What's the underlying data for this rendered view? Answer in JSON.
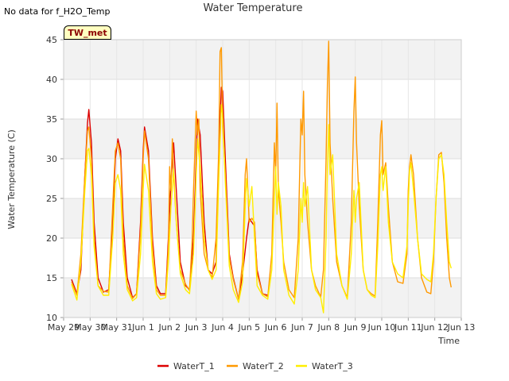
{
  "no_data_note": "No data for f_H2O_Temp",
  "badge_label": "TW_met",
  "chart_data": {
    "type": "line",
    "title": "Water Temperature",
    "xlabel": "Time",
    "ylabel": "Water Temperature (C)",
    "ylim": [
      10,
      45
    ],
    "yticks": [
      10,
      15,
      20,
      25,
      30,
      35,
      40,
      45
    ],
    "xlim": [
      0,
      15
    ],
    "xticks": [
      {
        "v": 0,
        "label": "May 29"
      },
      {
        "v": 1,
        "label": "May 30"
      },
      {
        "v": 2,
        "label": "May 31"
      },
      {
        "v": 3,
        "label": "Jun 1"
      },
      {
        "v": 4,
        "label": "Jun 2"
      },
      {
        "v": 5,
        "label": "Jun 3"
      },
      {
        "v": 6,
        "label": "Jun 4"
      },
      {
        "v": 7,
        "label": "Jun 5"
      },
      {
        "v": 8,
        "label": "Jun 6"
      },
      {
        "v": 9,
        "label": "Jun 7"
      },
      {
        "v": 10,
        "label": "Jun 8"
      },
      {
        "v": 11,
        "label": "Jun 9"
      },
      {
        "v": 12,
        "label": "Jun 10"
      },
      {
        "v": 13,
        "label": "Jun 11"
      },
      {
        "v": 14,
        "label": "Jun 12"
      },
      {
        "v": 15,
        "label": "Jun 13"
      }
    ],
    "grid": true,
    "legend_position": "bottom-center",
    "series": [
      {
        "name": "WaterT_1",
        "color": "#dd0000",
        "points": [
          [
            0.3,
            14.8
          ],
          [
            0.5,
            13.0
          ],
          [
            0.65,
            16
          ],
          [
            0.8,
            28
          ],
          [
            0.9,
            34.5
          ],
          [
            0.95,
            36.2
          ],
          [
            1.05,
            32
          ],
          [
            1.15,
            22
          ],
          [
            1.3,
            15
          ],
          [
            1.5,
            13.2
          ],
          [
            1.7,
            13.5
          ],
          [
            1.85,
            22
          ],
          [
            1.95,
            30
          ],
          [
            2.05,
            32.5
          ],
          [
            2.15,
            31
          ],
          [
            2.25,
            22
          ],
          [
            2.4,
            15
          ],
          [
            2.6,
            12.5
          ],
          [
            2.75,
            13
          ],
          [
            2.9,
            22
          ],
          [
            3.0,
            31
          ],
          [
            3.05,
            34
          ],
          [
            3.2,
            31
          ],
          [
            3.35,
            20
          ],
          [
            3.5,
            14
          ],
          [
            3.65,
            13
          ],
          [
            3.85,
            13
          ],
          [
            3.95,
            20
          ],
          [
            4.05,
            27
          ],
          [
            4.15,
            32
          ],
          [
            4.25,
            26
          ],
          [
            4.4,
            17
          ],
          [
            4.6,
            14
          ],
          [
            4.75,
            13.5
          ],
          [
            4.9,
            20
          ],
          [
            5.0,
            30
          ],
          [
            5.05,
            35
          ],
          [
            5.15,
            33
          ],
          [
            5.3,
            22
          ],
          [
            5.45,
            16
          ],
          [
            5.6,
            15.5
          ],
          [
            5.75,
            17
          ],
          [
            5.85,
            30
          ],
          [
            5.95,
            39
          ],
          [
            6.0,
            38.5
          ],
          [
            6.1,
            30
          ],
          [
            6.25,
            18
          ],
          [
            6.4,
            15
          ],
          [
            6.6,
            12.3
          ],
          [
            6.75,
            15.5
          ],
          [
            6.9,
            20
          ],
          [
            7.0,
            22.5
          ],
          [
            7.1,
            22
          ],
          [
            7.2,
            21.5
          ],
          [
            7.3,
            16
          ],
          [
            7.5,
            13
          ],
          [
            7.7,
            12.8
          ]
        ]
      },
      {
        "name": "WaterT_2",
        "color": "#ff9900",
        "points": [
          [
            0.3,
            14.5
          ],
          [
            0.5,
            12.8
          ],
          [
            0.65,
            18
          ],
          [
            0.8,
            28
          ],
          [
            0.9,
            33.5
          ],
          [
            0.95,
            34
          ],
          [
            1.05,
            30
          ],
          [
            1.15,
            20
          ],
          [
            1.3,
            14
          ],
          [
            1.5,
            13.3
          ],
          [
            1.7,
            13.2
          ],
          [
            1.85,
            24
          ],
          [
            1.95,
            31
          ],
          [
            2.05,
            32
          ],
          [
            2.15,
            30
          ],
          [
            2.25,
            20
          ],
          [
            2.4,
            14
          ],
          [
            2.6,
            12.4
          ],
          [
            2.75,
            13
          ],
          [
            2.9,
            21
          ],
          [
            3.0,
            30
          ],
          [
            3.05,
            33.5
          ],
          [
            3.2,
            30
          ],
          [
            3.35,
            19
          ],
          [
            3.5,
            13.5
          ],
          [
            3.65,
            12.8
          ],
          [
            3.85,
            12.8
          ],
          [
            3.95,
            19
          ],
          [
            4.0,
            29
          ],
          [
            4.05,
            26
          ],
          [
            4.1,
            32.5
          ],
          [
            4.15,
            28
          ],
          [
            4.25,
            22
          ],
          [
            4.4,
            16
          ],
          [
            4.6,
            14.2
          ],
          [
            4.75,
            13.4
          ],
          [
            4.85,
            20
          ],
          [
            4.9,
            26
          ],
          [
            4.95,
            31
          ],
          [
            5.0,
            36
          ],
          [
            5.05,
            33
          ],
          [
            5.1,
            35
          ],
          [
            5.15,
            26
          ],
          [
            5.3,
            18
          ],
          [
            5.45,
            16
          ],
          [
            5.6,
            15
          ],
          [
            5.75,
            20
          ],
          [
            5.85,
            31
          ],
          [
            5.9,
            43.5
          ],
          [
            5.95,
            44
          ],
          [
            6.0,
            34
          ],
          [
            6.1,
            28
          ],
          [
            6.25,
            17.5
          ],
          [
            6.4,
            14.8
          ],
          [
            6.6,
            12.3
          ],
          [
            6.75,
            17
          ],
          [
            6.85,
            28
          ],
          [
            6.9,
            30
          ],
          [
            6.95,
            26
          ],
          [
            7.0,
            22
          ],
          [
            7.1,
            22.5
          ],
          [
            7.2,
            22
          ],
          [
            7.3,
            15.5
          ],
          [
            7.5,
            13
          ],
          [
            7.7,
            12.6
          ],
          [
            7.85,
            18
          ],
          [
            7.95,
            32
          ],
          [
            8.0,
            28
          ],
          [
            8.05,
            37
          ],
          [
            8.1,
            26
          ],
          [
            8.2,
            22
          ],
          [
            8.3,
            17
          ],
          [
            8.5,
            13.5
          ],
          [
            8.7,
            12.5
          ],
          [
            8.85,
            20
          ],
          [
            8.95,
            35
          ],
          [
            9.0,
            33
          ],
          [
            9.05,
            38.5
          ],
          [
            9.1,
            28
          ],
          [
            9.2,
            22
          ],
          [
            9.35,
            16
          ],
          [
            9.5,
            14
          ],
          [
            9.7,
            12.6
          ],
          [
            9.8,
            16
          ],
          [
            9.9,
            30
          ],
          [
            9.95,
            39.5
          ],
          [
            10.0,
            44.8
          ],
          [
            10.05,
            32
          ],
          [
            10.15,
            25
          ],
          [
            10.3,
            17
          ],
          [
            10.5,
            14
          ],
          [
            10.7,
            12.5
          ],
          [
            10.85,
            22
          ],
          [
            10.95,
            36
          ],
          [
            11.0,
            40.3
          ],
          [
            11.05,
            32
          ],
          [
            11.15,
            24
          ],
          [
            11.3,
            16
          ],
          [
            11.45,
            13.5
          ],
          [
            11.6,
            13
          ],
          [
            11.75,
            12.7
          ],
          [
            11.85,
            22
          ],
          [
            11.95,
            33
          ],
          [
            12.0,
            34.8
          ],
          [
            12.05,
            28
          ],
          [
            12.15,
            29.5
          ],
          [
            12.25,
            24
          ],
          [
            12.4,
            17
          ],
          [
            12.6,
            14.5
          ],
          [
            12.8,
            14.3
          ],
          [
            12.95,
            18
          ],
          [
            13.0,
            26
          ],
          [
            13.05,
            29
          ],
          [
            13.1,
            30.5
          ],
          [
            13.2,
            28
          ],
          [
            13.35,
            20
          ],
          [
            13.5,
            15
          ],
          [
            13.7,
            13.2
          ],
          [
            13.85,
            13
          ],
          [
            13.95,
            17
          ],
          [
            14.05,
            25
          ],
          [
            14.15,
            30.5
          ],
          [
            14.25,
            30.8
          ],
          [
            14.35,
            27
          ],
          [
            14.45,
            20
          ],
          [
            14.55,
            15
          ],
          [
            14.62,
            13.8
          ]
        ]
      },
      {
        "name": "WaterT_3",
        "color": "#ffee00",
        "points": [
          [
            0.3,
            14.2
          ],
          [
            0.5,
            12.2
          ],
          [
            0.65,
            17
          ],
          [
            0.8,
            26
          ],
          [
            0.9,
            31
          ],
          [
            0.95,
            31.3
          ],
          [
            1.05,
            28
          ],
          [
            1.15,
            19
          ],
          [
            1.3,
            14
          ],
          [
            1.5,
            12.8
          ],
          [
            1.7,
            12.8
          ],
          [
            1.85,
            20
          ],
          [
            1.95,
            27
          ],
          [
            2.05,
            28
          ],
          [
            2.15,
            26
          ],
          [
            2.25,
            18
          ],
          [
            2.4,
            13.5
          ],
          [
            2.6,
            12.1
          ],
          [
            2.75,
            12.5
          ],
          [
            2.9,
            18
          ],
          [
            3.0,
            26
          ],
          [
            3.05,
            29.3
          ],
          [
            3.2,
            26
          ],
          [
            3.35,
            17
          ],
          [
            3.5,
            13
          ],
          [
            3.65,
            12.3
          ],
          [
            3.85,
            12.5
          ],
          [
            3.95,
            17
          ],
          [
            4.05,
            24
          ],
          [
            4.15,
            28.7
          ],
          [
            4.25,
            22
          ],
          [
            4.4,
            15.5
          ],
          [
            4.6,
            13.5
          ],
          [
            4.75,
            13
          ],
          [
            4.9,
            18
          ],
          [
            5.0,
            28
          ],
          [
            5.05,
            32.5
          ],
          [
            5.15,
            29
          ],
          [
            5.3,
            20
          ],
          [
            5.45,
            16
          ],
          [
            5.6,
            14.8
          ],
          [
            5.75,
            16
          ],
          [
            5.85,
            27
          ],
          [
            5.95,
            36.8
          ],
          [
            6.0,
            35.5
          ],
          [
            6.1,
            27
          ],
          [
            6.25,
            16.5
          ],
          [
            6.4,
            13.5
          ],
          [
            6.6,
            11.9
          ],
          [
            6.75,
            14.5
          ],
          [
            6.85,
            24
          ],
          [
            6.9,
            27.5
          ],
          [
            7.0,
            24
          ],
          [
            7.1,
            26.5
          ],
          [
            7.2,
            20
          ],
          [
            7.3,
            14
          ],
          [
            7.5,
            12.8
          ],
          [
            7.7,
            12.3
          ],
          [
            7.85,
            16
          ],
          [
            7.95,
            25
          ],
          [
            8.0,
            29
          ],
          [
            8.05,
            23
          ],
          [
            8.1,
            27
          ],
          [
            8.2,
            24
          ],
          [
            8.3,
            16
          ],
          [
            8.5,
            12.8
          ],
          [
            8.7,
            11.7
          ],
          [
            8.85,
            16
          ],
          [
            8.95,
            25
          ],
          [
            9.0,
            22
          ],
          [
            9.05,
            27
          ],
          [
            9.1,
            24
          ],
          [
            9.2,
            26.5
          ],
          [
            9.35,
            16
          ],
          [
            9.5,
            13.5
          ],
          [
            9.7,
            12.5
          ],
          [
            9.8,
            10.6
          ],
          [
            9.9,
            20
          ],
          [
            9.95,
            29
          ],
          [
            10.0,
            34.3
          ],
          [
            10.05,
            28
          ],
          [
            10.15,
            30.5
          ],
          [
            10.3,
            18
          ],
          [
            10.5,
            14
          ],
          [
            10.7,
            12.3
          ],
          [
            10.85,
            18
          ],
          [
            10.95,
            26
          ],
          [
            11.0,
            22
          ],
          [
            11.05,
            25
          ],
          [
            11.15,
            27
          ],
          [
            11.3,
            16
          ],
          [
            11.45,
            13.5
          ],
          [
            11.6,
            12.8
          ],
          [
            11.75,
            12.5
          ],
          [
            11.85,
            19
          ],
          [
            11.95,
            28
          ],
          [
            12.0,
            29
          ],
          [
            12.05,
            26
          ],
          [
            12.15,
            29
          ],
          [
            12.25,
            22
          ],
          [
            12.4,
            17
          ],
          [
            12.6,
            15.5
          ],
          [
            12.8,
            15
          ],
          [
            12.95,
            19
          ],
          [
            13.0,
            24
          ],
          [
            13.05,
            28.5
          ],
          [
            13.1,
            29.5
          ],
          [
            13.2,
            26
          ],
          [
            13.35,
            20
          ],
          [
            13.5,
            15.5
          ],
          [
            13.7,
            14.8
          ],
          [
            13.85,
            14.5
          ],
          [
            13.95,
            18
          ],
          [
            14.05,
            25
          ],
          [
            14.15,
            30
          ],
          [
            14.25,
            30.5
          ],
          [
            14.35,
            28
          ],
          [
            14.45,
            22
          ],
          [
            14.55,
            17
          ],
          [
            14.62,
            16.2
          ]
        ]
      }
    ]
  }
}
